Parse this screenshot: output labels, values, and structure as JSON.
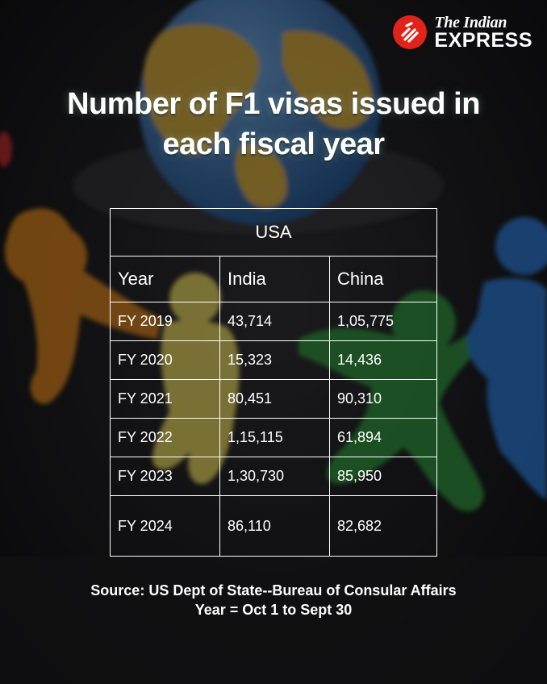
{
  "brand": {
    "line1": "The Indian",
    "line2": "EXPRESS"
  },
  "title": {
    "line1": "Number of F1 visas issued in",
    "line2": "each fiscal year"
  },
  "chart_data": {
    "type": "table",
    "group_header": "USA",
    "columns": [
      "Year",
      "India",
      "China"
    ],
    "rows": [
      [
        "FY 2019",
        "43,714",
        "1,05,775"
      ],
      [
        "FY 2020",
        "15,323",
        "14,436"
      ],
      [
        "FY 2021",
        "80,451",
        "90,310"
      ],
      [
        "FY 2022",
        "1,15,115",
        "61,894"
      ],
      [
        "FY 2023",
        "1,30,730",
        "85,950"
      ],
      [
        "FY 2024",
        "86,110",
        "82,682"
      ]
    ]
  },
  "source": {
    "line1": "Source: US Dept of State--Bureau of Consular Affairs",
    "line2": "Year = Oct 1 to Sept 30"
  },
  "colors": {
    "background": "#141416",
    "brand_red": "#e2231a",
    "text": "#ffffff"
  }
}
